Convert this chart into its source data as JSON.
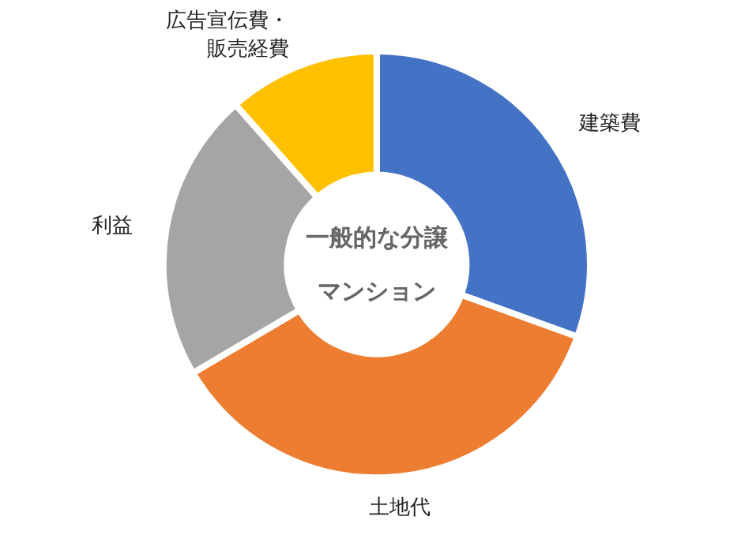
{
  "chart_data": {
    "type": "donut",
    "title": "一般的な分譲マンション",
    "categories": [
      "建築費",
      "土地代",
      "利益",
      "広告宣伝費・販売経費"
    ],
    "values": [
      30.5,
      36,
      22,
      11.5
    ],
    "colors": [
      "#4472c4",
      "#ed7d31",
      "#a5a5a5",
      "#ffc000"
    ],
    "legend": false
  }
}
